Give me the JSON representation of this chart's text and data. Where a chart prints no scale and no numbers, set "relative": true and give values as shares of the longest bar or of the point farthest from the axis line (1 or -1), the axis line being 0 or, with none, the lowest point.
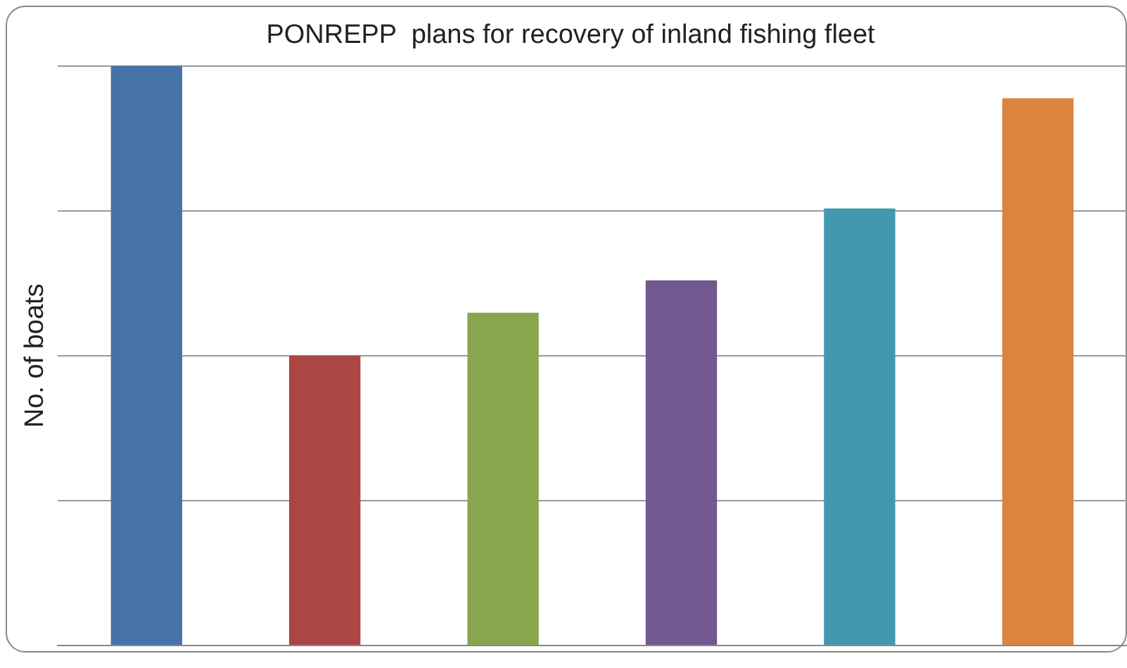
{
  "chart_data": {
    "type": "bar",
    "title": "PONREPP  plans for recovery of inland fishing fleet",
    "ylabel": "No. of boats",
    "categories": [
      null,
      null,
      null,
      null,
      null,
      null
    ],
    "values": [
      1,
      0.5,
      0.574,
      0.63,
      0.754,
      0.944
    ],
    "colors": [
      "#4572a7",
      "#aa4643",
      "#89a54e",
      "#71588f",
      "#4198af",
      "#db843d"
    ],
    "relative": true,
    "grid": "y",
    "legend": false
  }
}
